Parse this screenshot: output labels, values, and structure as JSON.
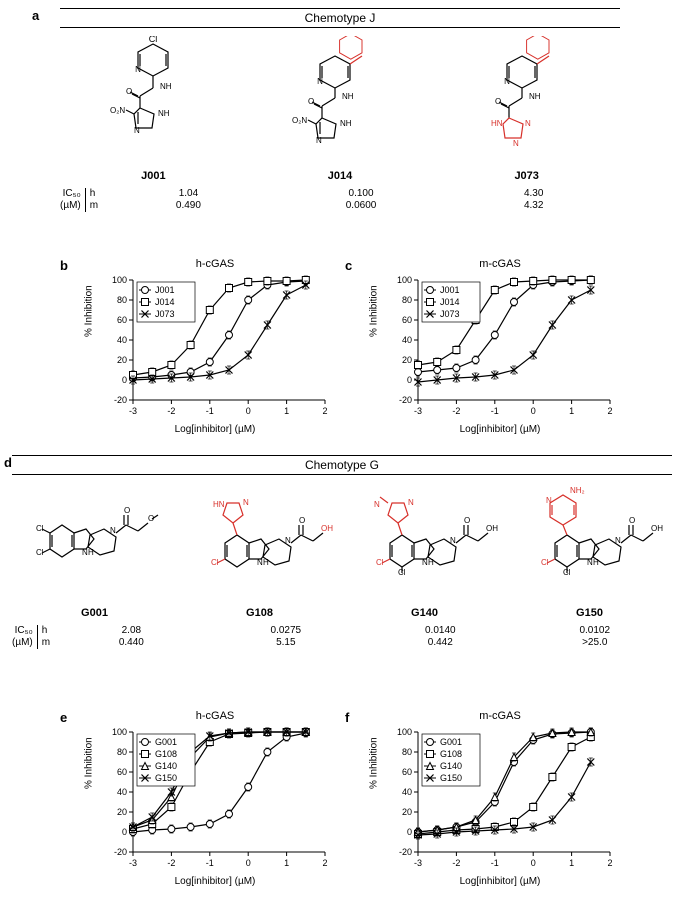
{
  "panelA": {
    "label": "a",
    "title": "Chemotype J",
    "compounds": [
      {
        "name": "J001",
        "ic50_h": "1.04",
        "ic50_m": "0.490"
      },
      {
        "name": "J014",
        "ic50_h": "0.100",
        "ic50_m": "0.0600"
      },
      {
        "name": "J073",
        "ic50_h": "4.30",
        "ic50_m": "4.32"
      }
    ],
    "ic50_label_top": "IC₅₀",
    "ic50_label_bottom": "(µM)",
    "hm_h": "h",
    "hm_m": "m"
  },
  "panelD": {
    "label": "d",
    "title": "Chemotype G",
    "compounds": [
      {
        "name": "G001",
        "ic50_h": "2.08",
        "ic50_m": "0.440"
      },
      {
        "name": "G108",
        "ic50_h": "0.0275",
        "ic50_m": "5.15"
      },
      {
        "name": "G140",
        "ic50_h": "0.0140",
        "ic50_m": "0.442"
      },
      {
        "name": "G150",
        "ic50_h": "0.0102",
        "ic50_m": ">25.0"
      }
    ],
    "ic50_label_top": "IC₅₀",
    "ic50_label_bottom": "(µM)",
    "hm_h": "h",
    "hm_m": "m"
  },
  "charts": {
    "ylabel": "% Inhibition",
    "xlabel": "Log[inhibitor] (µM)",
    "ylim": [
      -20,
      100
    ],
    "yticks": [
      -20,
      0,
      20,
      40,
      60,
      80,
      100
    ],
    "xlim": [
      -3,
      2
    ],
    "xticks": [
      -3,
      -2,
      -1,
      0,
      1,
      2
    ],
    "line_color": "#000000",
    "bg": "#ffffff",
    "markers": {
      "circle": "○",
      "square": "□",
      "triangle": "△",
      "cross": "×"
    },
    "b": {
      "label": "b",
      "title": "h-cGAS",
      "legend": [
        "J001",
        "J014",
        "J073"
      ],
      "legend_markers": [
        "circle",
        "square",
        "cross"
      ],
      "series": [
        {
          "name": "J001",
          "marker": "circle",
          "x": [
            -3,
            -2.5,
            -2,
            -1.5,
            -1,
            -0.5,
            0,
            0.5,
            1,
            1.5
          ],
          "y": [
            2,
            3,
            5,
            8,
            18,
            45,
            80,
            95,
            98,
            99
          ]
        },
        {
          "name": "J014",
          "marker": "square",
          "x": [
            -3,
            -2.5,
            -2,
            -1.5,
            -1,
            -0.5,
            0,
            0.5,
            1,
            1.5
          ],
          "y": [
            5,
            8,
            15,
            35,
            70,
            92,
            98,
            99,
            99,
            100
          ]
        },
        {
          "name": "J073",
          "marker": "cross",
          "x": [
            -3,
            -2.5,
            -2,
            -1.5,
            -1,
            -0.5,
            0,
            0.5,
            1,
            1.5
          ],
          "y": [
            0,
            1,
            2,
            3,
            5,
            10,
            25,
            55,
            85,
            95
          ]
        }
      ]
    },
    "c": {
      "label": "c",
      "title": "m-cGAS",
      "legend": [
        "J001",
        "J014",
        "J073"
      ],
      "legend_markers": [
        "circle",
        "square",
        "cross"
      ],
      "series": [
        {
          "name": "J001",
          "marker": "circle",
          "x": [
            -3,
            -2.5,
            -2,
            -1.5,
            -1,
            -0.5,
            0,
            0.5,
            1,
            1.5
          ],
          "y": [
            8,
            10,
            12,
            20,
            45,
            78,
            95,
            98,
            99,
            100
          ]
        },
        {
          "name": "J014",
          "marker": "square",
          "x": [
            -3,
            -2.5,
            -2,
            -1.5,
            -1,
            -0.5,
            0,
            0.5,
            1,
            1.5
          ],
          "y": [
            15,
            18,
            30,
            60,
            90,
            98,
            99,
            100,
            100,
            100
          ]
        },
        {
          "name": "J073",
          "marker": "cross",
          "x": [
            -3,
            -2.5,
            -2,
            -1.5,
            -1,
            -0.5,
            0,
            0.5,
            1,
            1.5
          ],
          "y": [
            -2,
            0,
            2,
            3,
            5,
            10,
            25,
            55,
            80,
            90
          ]
        }
      ]
    },
    "e": {
      "label": "e",
      "title": "h-cGAS",
      "legend": [
        "G001",
        "G108",
        "G140",
        "G150"
      ],
      "legend_markers": [
        "circle",
        "square",
        "triangle",
        "cross"
      ],
      "series": [
        {
          "name": "G001",
          "marker": "circle",
          "x": [
            -3,
            -2.5,
            -2,
            -1.5,
            -1,
            -0.5,
            0,
            0.5,
            1,
            1.5
          ],
          "y": [
            0,
            2,
            3,
            5,
            8,
            18,
            45,
            80,
            95,
            99
          ]
        },
        {
          "name": "G108",
          "marker": "square",
          "x": [
            -3,
            -2.5,
            -2,
            -1.5,
            -1,
            -0.5,
            0,
            0.5,
            1,
            1.5
          ],
          "y": [
            3,
            8,
            25,
            60,
            90,
            98,
            99,
            100,
            100,
            100
          ]
        },
        {
          "name": "G140",
          "marker": "triangle",
          "x": [
            -3,
            -2.5,
            -2,
            -1.5,
            -1,
            -0.5,
            0,
            0.5,
            1,
            1.5
          ],
          "y": [
            5,
            12,
            35,
            75,
            95,
            99,
            100,
            100,
            100,
            100
          ]
        },
        {
          "name": "G150",
          "marker": "cross",
          "x": [
            -3,
            -2.5,
            -2,
            -1.5,
            -1,
            -0.5,
            0,
            0.5,
            1,
            1.5
          ],
          "y": [
            5,
            15,
            40,
            80,
            96,
            99,
            100,
            100,
            100,
            100
          ]
        }
      ]
    },
    "f": {
      "label": "f",
      "title": "m-cGAS",
      "legend": [
        "G001",
        "G108",
        "G140",
        "G150"
      ],
      "legend_markers": [
        "circle",
        "square",
        "triangle",
        "cross"
      ],
      "series": [
        {
          "name": "G001",
          "marker": "circle",
          "x": [
            -3,
            -2.5,
            -2,
            -1.5,
            -1,
            -0.5,
            0,
            0.5,
            1,
            1.5
          ],
          "y": [
            0,
            2,
            5,
            10,
            30,
            70,
            92,
            98,
            99,
            100
          ]
        },
        {
          "name": "G108",
          "marker": "square",
          "x": [
            -3,
            -2.5,
            -2,
            -1.5,
            -1,
            -0.5,
            0,
            0.5,
            1,
            1.5
          ],
          "y": [
            -2,
            0,
            2,
            3,
            5,
            10,
            25,
            55,
            85,
            95
          ]
        },
        {
          "name": "G140",
          "marker": "triangle",
          "x": [
            -3,
            -2.5,
            -2,
            -1.5,
            -1,
            -0.5,
            0,
            0.5,
            1,
            1.5
          ],
          "y": [
            0,
            2,
            5,
            12,
            35,
            75,
            95,
            99,
            100,
            100
          ]
        },
        {
          "name": "G150",
          "marker": "cross",
          "x": [
            -3,
            -2.5,
            -2,
            -1.5,
            -1,
            -0.5,
            0,
            0.5,
            1,
            1.5
          ],
          "y": [
            -3,
            -2,
            0,
            1,
            2,
            3,
            5,
            12,
            35,
            70
          ]
        }
      ]
    }
  },
  "colors": {
    "black": "#000000",
    "highlight": "#d7302a"
  }
}
